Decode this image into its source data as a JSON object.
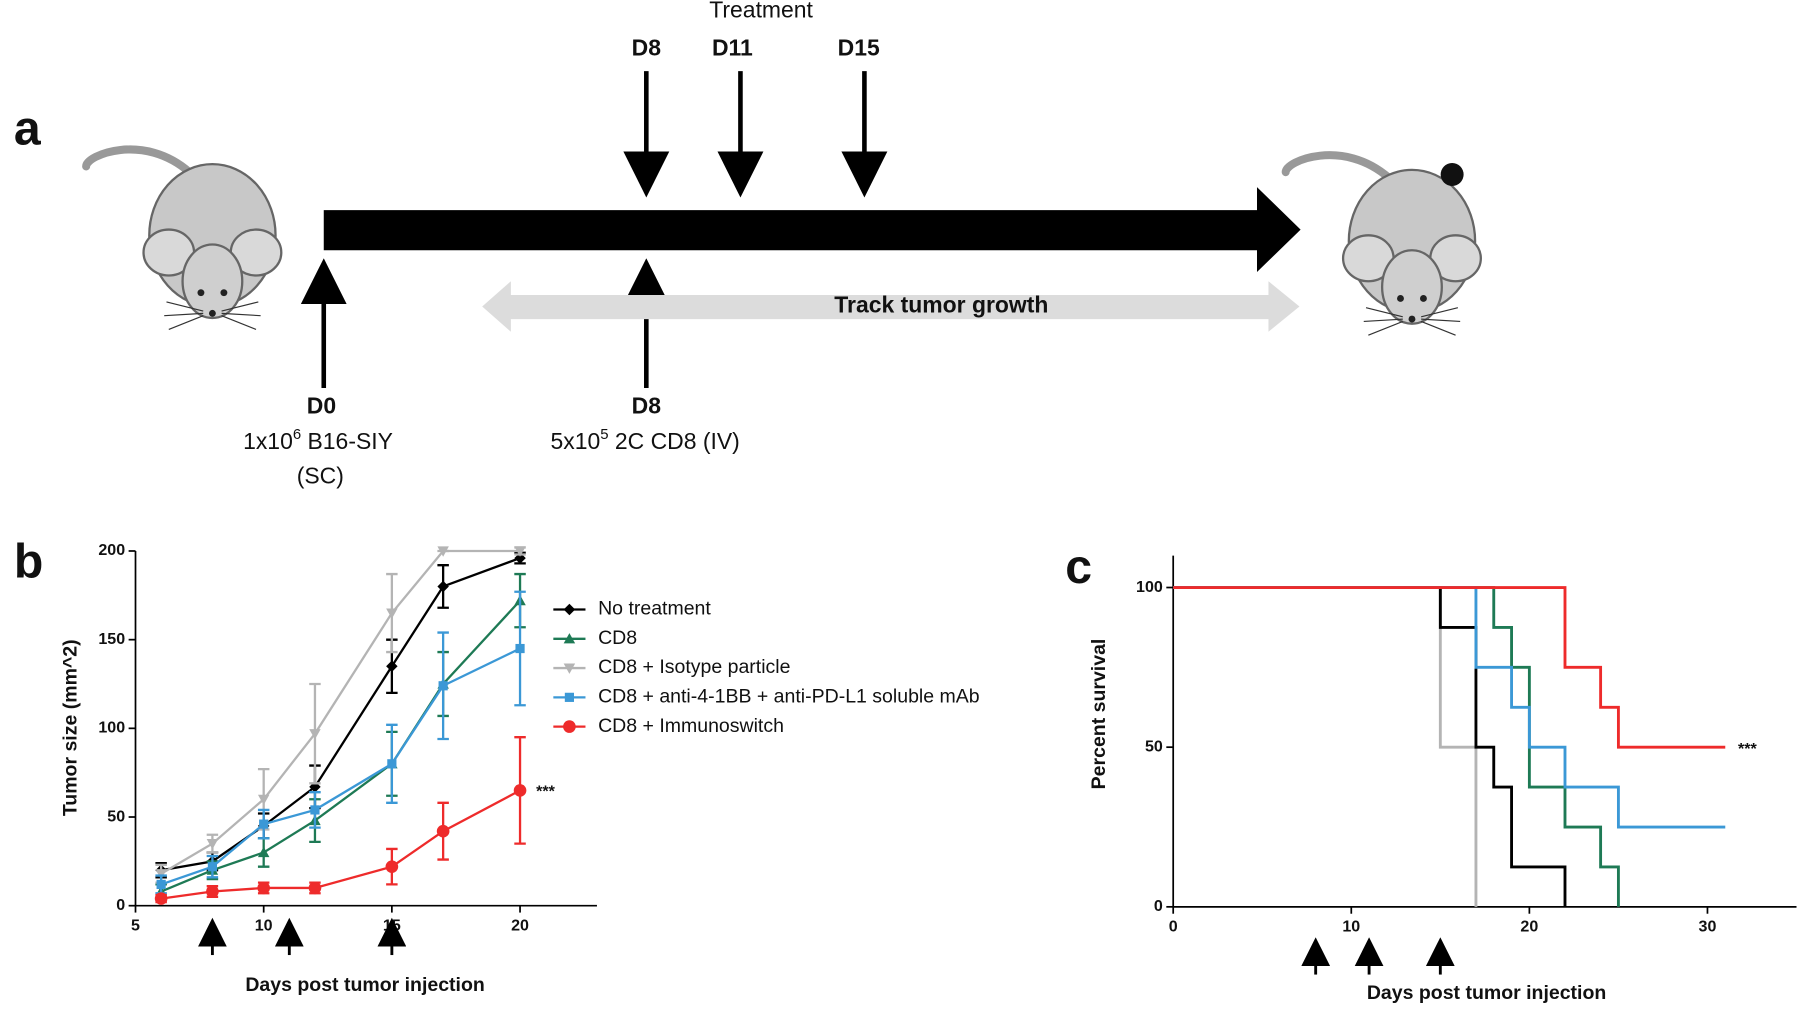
{
  "diagram": {
    "panels": [
      "a",
      "b",
      "c"
    ],
    "treatment": "Treatment",
    "treatment_days": [
      "D8",
      "D11",
      "D15"
    ],
    "track": "Track tumor growth",
    "injection_1": {
      "day": "D0",
      "line1": [
        "1x10",
        "6",
        " B16-SIY"
      ],
      "line2": "(SC)"
    },
    "injection_2": {
      "day": "D8",
      "line1": [
        "5x10",
        "5",
        " 2C CD8 (IV)"
      ]
    }
  },
  "chart_data": [
    {
      "type": "line",
      "ylabel": "Tumor size (mm^2)",
      "xlabel": "Days post tumor injection",
      "annotation": "***",
      "x": [
        6,
        8,
        10,
        12,
        15,
        17,
        20
      ],
      "xlim": [
        5,
        23
      ],
      "xticks": [
        5,
        10,
        15,
        20
      ],
      "ylim": [
        0,
        200
      ],
      "yticks": [
        0,
        50,
        100,
        150,
        200
      ],
      "treatment_days": [
        8,
        11,
        15
      ],
      "series": [
        {
          "name": "No treatment",
          "color": "#000000",
          "marker": "diamond",
          "values": [
            20,
            25,
            45,
            67,
            135,
            180,
            196
          ],
          "errors": [
            4,
            5,
            7,
            12,
            15,
            12,
            3
          ]
        },
        {
          "name": "CD8",
          "color": "#1e7a55",
          "marker": "triangle",
          "values": [
            8,
            20,
            30,
            48,
            80,
            125,
            172
          ],
          "errors": [
            4,
            5,
            8,
            12,
            18,
            18,
            15
          ]
        },
        {
          "name": "CD8 + Isotype particle",
          "color": "#b4b4b4",
          "marker": "triangle-down",
          "values": [
            18,
            35,
            60,
            97,
            165,
            200,
            200
          ],
          "errors": [
            5,
            5,
            17,
            28,
            22,
            0,
            2
          ]
        },
        {
          "name": "CD8 + anti-4-1BB + anti-PD-L1 soluble mAb",
          "color": "#3b98d6",
          "marker": "square",
          "values": [
            12,
            22,
            46,
            54,
            80,
            124,
            145
          ],
          "errors": [
            5,
            6,
            8,
            10,
            22,
            30,
            32
          ]
        },
        {
          "name": "CD8 + Immunoswitch",
          "color": "#ee2b2b",
          "marker": "circle",
          "values": [
            4,
            8,
            10,
            10,
            22,
            42,
            65
          ],
          "errors": [
            2,
            3,
            3,
            3,
            10,
            16,
            30
          ]
        }
      ]
    },
    {
      "type": "step",
      "ylabel": "Percent survival",
      "xlabel": "Days post tumor injection",
      "annotation": "***",
      "xlim": [
        0,
        35
      ],
      "xticks": [
        0,
        10,
        20,
        30
      ],
      "ylim": [
        0,
        110
      ],
      "yticks": [
        0,
        50,
        100
      ],
      "treatment_days": [
        8,
        11,
        15
      ],
      "series": [
        {
          "color": "#b4b4b4",
          "x": [
            0,
            15,
            17
          ],
          "values": [
            100,
            50,
            0
          ]
        },
        {
          "color": "#000000",
          "x": [
            0,
            15,
            17,
            18,
            19,
            22
          ],
          "values": [
            100,
            87.5,
            50,
            37.5,
            12.5,
            0
          ]
        },
        {
          "color": "#1e7a55",
          "x": [
            0,
            18,
            19,
            20,
            22,
            24,
            25
          ],
          "values": [
            100,
            87.5,
            75,
            37.5,
            25,
            12.5,
            0
          ]
        },
        {
          "color": "#3b98d6",
          "x": [
            0,
            17,
            19,
            20,
            22,
            25,
            31
          ],
          "values": [
            100,
            75,
            62.5,
            50,
            37.5,
            25,
            25
          ]
        },
        {
          "color": "#ee2b2b",
          "x": [
            0,
            22,
            24,
            25,
            31
          ],
          "values": [
            100,
            75,
            62.5,
            50,
            50
          ]
        }
      ]
    }
  ]
}
